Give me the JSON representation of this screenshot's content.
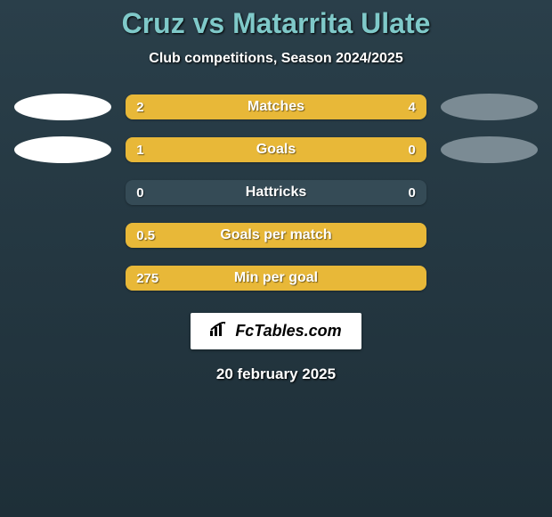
{
  "title": "Cruz vs Matarrita Ulate",
  "subtitle": "Club competitions, Season 2024/2025",
  "date": "20 february 2025",
  "logo": {
    "text": "FcTables.com"
  },
  "colors": {
    "bar_fill": "#e8b838",
    "bar_track": "#354b56",
    "title_color": "#7fc9c9",
    "text_color": "#ffffff",
    "bg": "#1e2f38",
    "oval_left": "#ffffff",
    "oval_right": "#7b8b94"
  },
  "bars": [
    {
      "label": "Matches",
      "left_val": "2",
      "right_val": "4",
      "left_pct": 32,
      "right_pct": 68,
      "show_ovals": true
    },
    {
      "label": "Goals",
      "left_val": "1",
      "right_val": "0",
      "left_pct": 80,
      "right_pct": 20,
      "show_ovals": true
    },
    {
      "label": "Hattricks",
      "left_val": "0",
      "right_val": "0",
      "left_pct": 0,
      "right_pct": 0,
      "show_ovals": false
    },
    {
      "label": "Goals per match",
      "left_val": "0.5",
      "right_val": "",
      "left_pct": 100,
      "right_pct": 0,
      "show_ovals": false
    },
    {
      "label": "Min per goal",
      "left_val": "275",
      "right_val": "",
      "left_pct": 100,
      "right_pct": 0,
      "show_ovals": false
    }
  ]
}
